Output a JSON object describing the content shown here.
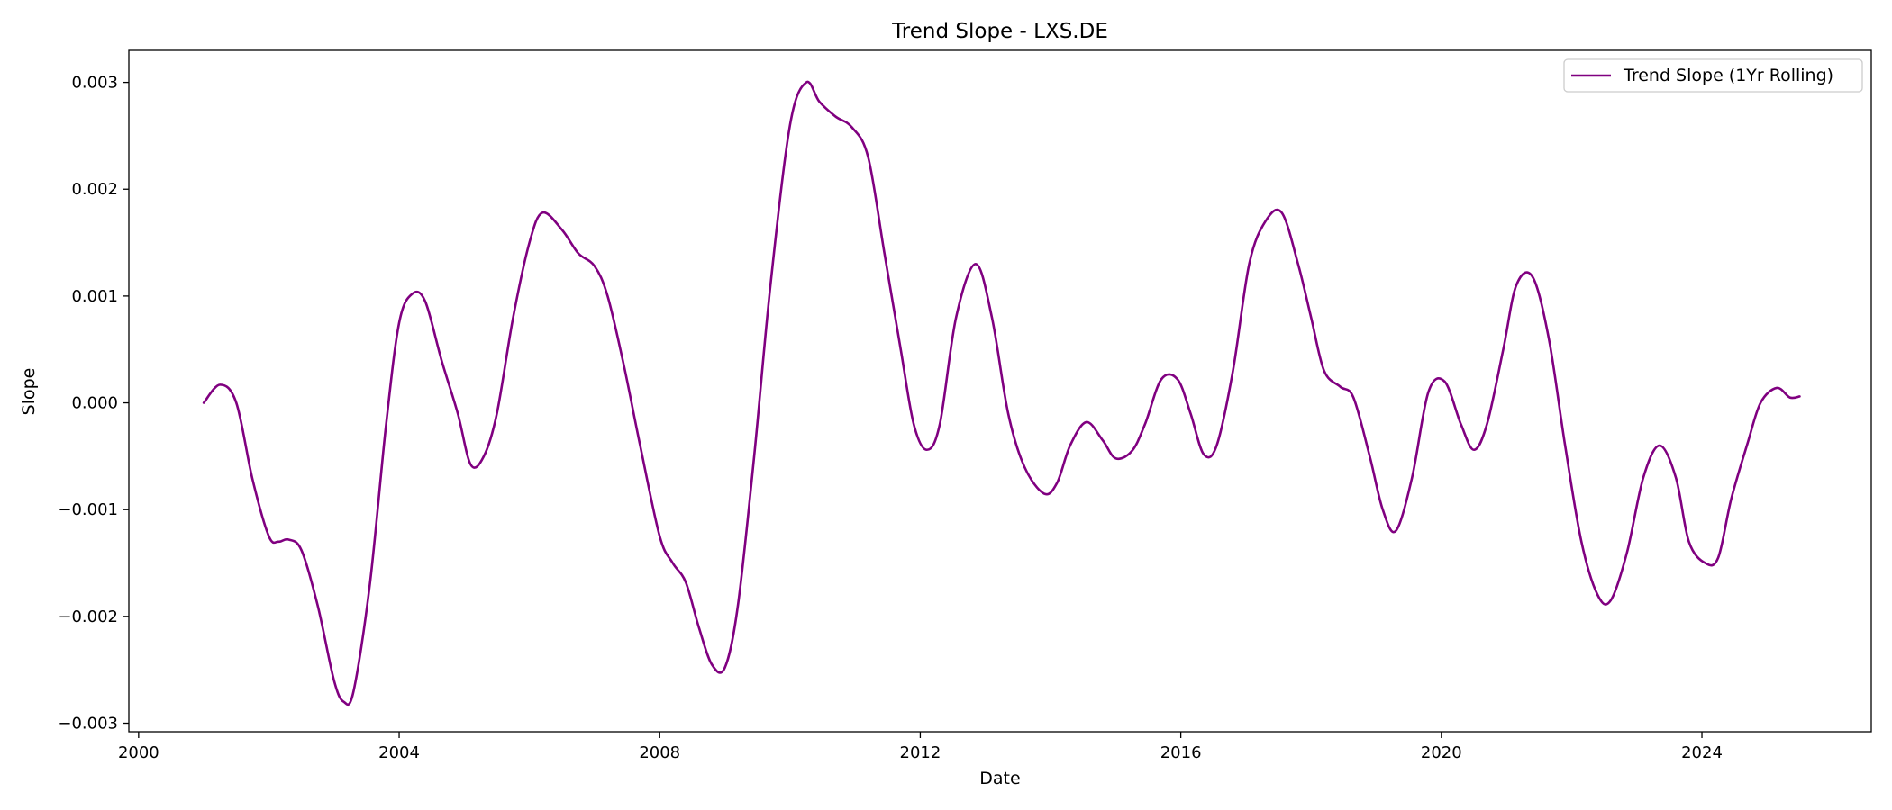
{
  "chart_data": {
    "type": "line",
    "title": "Trend Slope - LXS.DE",
    "xlabel": "Date",
    "ylabel": "Slope",
    "xlim": [
      1999.85,
      2026.6
    ],
    "ylim": [
      -0.00308,
      0.0033
    ],
    "x_ticks": [
      2000,
      2004,
      2008,
      2012,
      2016,
      2020,
      2024
    ],
    "x_tick_labels": [
      "2000",
      "2004",
      "2008",
      "2012",
      "2016",
      "2020",
      "2024"
    ],
    "y_ticks": [
      -0.003,
      -0.002,
      -0.001,
      0.0,
      0.001,
      0.002,
      0.003
    ],
    "y_tick_labels": [
      "−0.003",
      "−0.002",
      "−0.001",
      "0.000",
      "0.001",
      "0.002",
      "0.003"
    ],
    "grid": false,
    "legend_position": "top-right",
    "series": [
      {
        "name": "Trend Slope (1Yr Rolling)",
        "color": "#800080",
        "x": [
          2001.0,
          2001.25,
          2001.5,
          2001.75,
          2002.0,
          2002.15,
          2002.3,
          2002.5,
          2002.75,
          2003.0,
          2003.15,
          2003.3,
          2003.55,
          2003.8,
          2004.0,
          2004.2,
          2004.4,
          2004.65,
          2004.9,
          2005.1,
          2005.3,
          2005.5,
          2005.75,
          2006.0,
          2006.2,
          2006.5,
          2006.75,
          2007.0,
          2007.2,
          2007.45,
          2007.7,
          2008.0,
          2008.2,
          2008.4,
          2008.6,
          2008.8,
          2009.0,
          2009.2,
          2009.45,
          2009.7,
          2010.0,
          2010.25,
          2010.45,
          2010.7,
          2010.95,
          2011.2,
          2011.45,
          2011.7,
          2011.9,
          2012.1,
          2012.3,
          2012.55,
          2012.85,
          2013.1,
          2013.35,
          2013.6,
          2013.9,
          2014.1,
          2014.3,
          2014.55,
          2014.8,
          2015.0,
          2015.25,
          2015.45,
          2015.7,
          2015.95,
          2016.15,
          2016.35,
          2016.55,
          2016.8,
          2017.05,
          2017.3,
          2017.55,
          2017.8,
          2018.0,
          2018.2,
          2018.45,
          2018.65,
          2018.9,
          2019.1,
          2019.3,
          2019.55,
          2019.8,
          2020.05,
          2020.3,
          2020.5,
          2020.7,
          2020.95,
          2021.15,
          2021.4,
          2021.65,
          2021.9,
          2022.15,
          2022.4,
          2022.6,
          2022.85,
          2023.1,
          2023.35,
          2023.6,
          2023.8,
          2024.05,
          2024.25,
          2024.45,
          2024.7,
          2024.9,
          2025.15,
          2025.35,
          2025.5
        ],
        "values": [
          0.0,
          0.00017,
          0.0,
          -0.00072,
          -0.00125,
          -0.0013,
          -0.00128,
          -0.00138,
          -0.0019,
          -0.0026,
          -0.0028,
          -0.0027,
          -0.0017,
          -0.0002,
          0.00075,
          0.00102,
          0.00095,
          0.0004,
          -0.0001,
          -0.00058,
          -0.0005,
          -0.0001,
          0.0008,
          0.0015,
          0.00178,
          0.00162,
          0.0014,
          0.00128,
          0.001,
          0.00035,
          -0.0004,
          -0.00125,
          -0.0015,
          -0.00168,
          -0.0021,
          -0.00245,
          -0.00248,
          -0.0019,
          -0.0005,
          0.0011,
          0.0026,
          0.003,
          0.00282,
          0.00268,
          0.00258,
          0.0023,
          0.0014,
          0.0005,
          -0.0002,
          -0.00044,
          -0.0002,
          0.0008,
          0.0013,
          0.0008,
          -0.0001,
          -0.0006,
          -0.00085,
          -0.00075,
          -0.0004,
          -0.00018,
          -0.00035,
          -0.00052,
          -0.00045,
          -0.0002,
          0.00022,
          0.00022,
          -0.0001,
          -0.00048,
          -0.0004,
          0.0003,
          0.0013,
          0.0017,
          0.00178,
          0.0013,
          0.0008,
          0.0003,
          0.00015,
          5e-05,
          -0.0005,
          -0.001,
          -0.0012,
          -0.0007,
          0.0001,
          0.0002,
          -0.0002,
          -0.00044,
          -0.0002,
          0.0005,
          0.0011,
          0.00118,
          0.0006,
          -0.0004,
          -0.0013,
          -0.0018,
          -0.00185,
          -0.0014,
          -0.0007,
          -0.0004,
          -0.0007,
          -0.0013,
          -0.0015,
          -0.00145,
          -0.0009,
          -0.00038,
          0.0,
          0.00014,
          5e-05,
          6e-05
        ]
      }
    ]
  }
}
